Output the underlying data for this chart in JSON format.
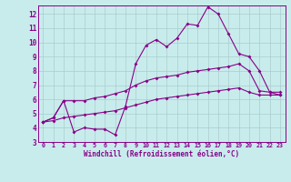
{
  "xlabel": "Windchill (Refroidissement éolien,°C)",
  "bg_color": "#c8ecec",
  "line_color": "#880088",
  "grid_color": "#aacccc",
  "ylim": [
    3.0,
    12.6
  ],
  "xlim": [
    -0.5,
    23.5
  ],
  "yticks": [
    3,
    4,
    5,
    6,
    7,
    8,
    9,
    10,
    11,
    12
  ],
  "xticks": [
    0,
    1,
    2,
    3,
    4,
    5,
    6,
    7,
    8,
    9,
    10,
    11,
    12,
    13,
    14,
    15,
    16,
    17,
    18,
    19,
    20,
    21,
    22,
    23
  ],
  "line1_x": [
    0,
    1,
    2,
    3,
    4,
    5,
    6,
    7,
    8,
    9,
    10,
    11,
    12,
    13,
    14,
    15,
    16,
    17,
    18,
    19,
    20,
    21,
    22,
    23
  ],
  "line1_y": [
    4.4,
    4.7,
    5.9,
    3.7,
    4.0,
    3.9,
    3.9,
    3.5,
    5.5,
    8.5,
    9.8,
    10.2,
    9.7,
    10.3,
    11.3,
    11.2,
    12.5,
    12.0,
    10.6,
    9.2,
    9.0,
    8.0,
    6.5,
    6.5
  ],
  "line2_x": [
    0,
    1,
    2,
    3,
    4,
    5,
    6,
    7,
    8,
    9,
    10,
    11,
    12,
    13,
    14,
    15,
    16,
    17,
    18,
    19,
    20,
    21,
    22,
    23
  ],
  "line2_y": [
    4.4,
    4.7,
    5.9,
    5.9,
    5.9,
    6.1,
    6.2,
    6.4,
    6.6,
    7.0,
    7.3,
    7.5,
    7.6,
    7.7,
    7.9,
    8.0,
    8.1,
    8.2,
    8.3,
    8.5,
    8.0,
    6.6,
    6.5,
    6.3
  ],
  "line3_x": [
    0,
    1,
    2,
    3,
    4,
    5,
    6,
    7,
    8,
    9,
    10,
    11,
    12,
    13,
    14,
    15,
    16,
    17,
    18,
    19,
    20,
    21,
    22,
    23
  ],
  "line3_y": [
    4.4,
    4.5,
    4.7,
    4.8,
    4.9,
    5.0,
    5.1,
    5.2,
    5.4,
    5.6,
    5.8,
    6.0,
    6.1,
    6.2,
    6.3,
    6.4,
    6.5,
    6.6,
    6.7,
    6.8,
    6.5,
    6.3,
    6.3,
    6.3
  ]
}
